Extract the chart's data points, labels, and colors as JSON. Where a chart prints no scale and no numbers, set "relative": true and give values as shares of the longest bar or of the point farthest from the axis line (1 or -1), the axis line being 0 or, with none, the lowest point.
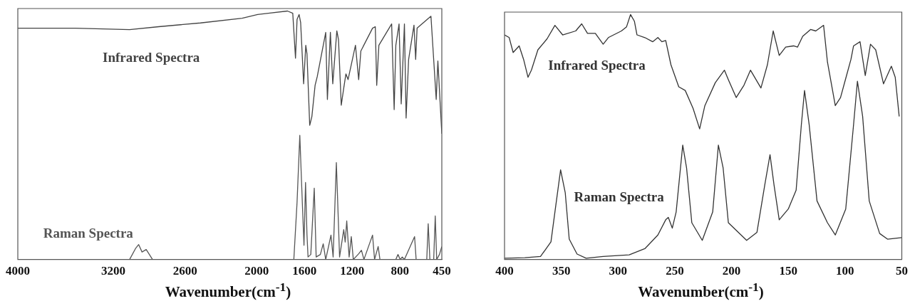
{
  "chart_data": [
    {
      "type": "line",
      "relative": true,
      "xlabel": "Wavenumber(cm$^{-1}$)",
      "xlim": [
        4000,
        450
      ],
      "xticks": [
        4000,
        3200,
        2600,
        2000,
        1600,
        1200,
        800,
        450
      ],
      "grid": false,
      "legend": false,
      "marker": "none",
      "line_style": "solid",
      "series": [
        {
          "name": "Infrared Spectra",
          "color": "#444444",
          "x": [
            4000,
            3518,
            3064,
            2820,
            2471,
            2122,
            1992,
            1903,
            1742,
            1698,
            1675,
            1662,
            1645,
            1632,
            1607,
            1589,
            1579,
            1556,
            1538,
            1511,
            1493,
            1422,
            1408,
            1383,
            1363,
            1329,
            1315,
            1292,
            1271,
            1253,
            1235,
            1173,
            1146,
            1128,
            1030,
            1007,
            995,
            977,
            870,
            849,
            835,
            808,
            790,
            763,
            749,
            728,
            683,
            669,
            657,
            541,
            497,
            483,
            450
          ],
          "values": [
            0.931,
            0.931,
            0.925,
            0.937,
            0.952,
            0.971,
            0.986,
            0.991,
            1,
            0.991,
            0.81,
            0.966,
            0.986,
            0.954,
            0.707,
            0.862,
            0.828,
            0.54,
            0.575,
            0.701,
            0.736,
            0.914,
            0.644,
            0.914,
            0.707,
            0.92,
            0.885,
            0.621,
            0.69,
            0.747,
            0.724,
            0.862,
            0.724,
            0.839,
            0.931,
            0.937,
            0.701,
            0.862,
            0.948,
            0.603,
            0.862,
            0.948,
            0.626,
            0.948,
            0.569,
            0.805,
            0.943,
            0.805,
            0.931,
            0.979,
            0.644,
            0.799,
            0.506
          ]
        },
        {
          "name": "Raman Spectra",
          "color": "#555555",
          "x": [
            3815,
            3064,
            3012,
            2988,
            2960,
            2925,
            2872,
            1689,
            1662,
            1639,
            1618,
            1604,
            1591,
            1579,
            1570,
            1547,
            1518,
            1502,
            1467,
            1443,
            1422,
            1378,
            1360,
            1333,
            1306,
            1271,
            1259,
            1246,
            1226,
            1208,
            1191,
            1146,
            1123,
            1102,
            1030,
            1013,
            983,
            968,
            835,
            817,
            799,
            781,
            763,
            678,
            665,
            576,
            564,
            550,
            518,
            505,
            493,
            470,
            450
          ],
          "values": [
            0,
            0,
            0.046,
            0.06,
            0.03,
            0.04,
            0,
            0,
            0.23,
            0.5,
            0.23,
            0.057,
            0.31,
            0.1,
            0.01,
            0.02,
            0.287,
            0.01,
            0.02,
            0.063,
            0,
            0.098,
            0.01,
            0.39,
            0.01,
            0.12,
            0.07,
            0.155,
            0.01,
            0.092,
            0,
            0.023,
            0.037,
            0,
            0.098,
            0,
            0.052,
            0,
            0,
            0.02,
            0,
            0.01,
            0,
            0.092,
            0,
            0,
            0.144,
            0,
            0,
            0.175,
            0,
            0.02,
            0.052
          ]
        }
      ]
    },
    {
      "type": "line",
      "relative": true,
      "xlabel": "Wavenumber(cm$^{-1}$)",
      "xlim": [
        400,
        50
      ],
      "xticks": [
        400,
        350,
        300,
        250,
        200,
        150,
        100,
        50
      ],
      "grid": false,
      "legend": false,
      "marker": "none",
      "line_style": "solid",
      "series": [
        {
          "name": "Infrared Spectra",
          "color": "#333333",
          "x": [
            400,
            395.9,
            392.4,
            387.1,
            383.2,
            379.3,
            376.3,
            370.6,
            362.5,
            355.6,
            348.8,
            337.3,
            332.0,
            326.9,
            320.0,
            313.1,
            308.5,
            297.0,
            292.5,
            289.0,
            285.6,
            283.3,
            276.4,
            269.5,
            264.9,
            261.4,
            258.0,
            253.4,
            246.5,
            240.8,
            233.9,
            228.1,
            223.5,
            214.3,
            206.3,
            202.8,
            195.9,
            189.0,
            183.3,
            177.6,
            174.1,
            168.4,
            163.3,
            158.0,
            152.3,
            145.4,
            141.9,
            137.3,
            130.4,
            125.8,
            118.9,
            115.5,
            108.6,
            104.0,
            99.4,
            94.8,
            92.5,
            86.8,
            82.2,
            77.6,
            73.0,
            66.1,
            59.2,
            55.8,
            52.3
          ],
          "values": [
            0.917,
            0.906,
            0.845,
            0.872,
            0.817,
            0.744,
            0.773,
            0.856,
            0.901,
            0.956,
            0.917,
            0.933,
            0.962,
            0.923,
            0.923,
            0.879,
            0.906,
            0.933,
            0.95,
            1,
            0.973,
            0.917,
            0.906,
            0.889,
            0.906,
            0.889,
            0.894,
            0.795,
            0.705,
            0.69,
            0.617,
            0.533,
            0.628,
            0.722,
            0.773,
            0.734,
            0.661,
            0.712,
            0.773,
            0.728,
            0.7,
            0.795,
            0.933,
            0.833,
            0.867,
            0.872,
            0.867,
            0.911,
            0.939,
            0.933,
            0.956,
            0.806,
            0.628,
            0.661,
            0.739,
            0.817,
            0.872,
            0.889,
            0.751,
            0.879,
            0.856,
            0.717,
            0.789,
            0.744,
            0.584
          ]
        },
        {
          "name": "Raman Spectra",
          "color": "#333333",
          "x": [
            400,
            382.1,
            368.3,
            359.1,
            355.6,
            350.6,
            346.5,
            343.0,
            336.1,
            328.1,
            313.1,
            290.2,
            276.4,
            264.9,
            258.0,
            255.7,
            252.2,
            248.8,
            243.0,
            239.6,
            235.0,
            225.8,
            216.6,
            211.6,
            207.4,
            202.8,
            186.7,
            177.6,
            170.7,
            166.1,
            162.6,
            158.0,
            150.0,
            143.1,
            138.5,
            135.7,
            131.6,
            124.7,
            115.5,
            108.6,
            99.4,
            92.5,
            89.1,
            84.5,
            78.7,
            69.5,
            62.6,
            50
          ],
          "values": [
            0.005,
            0.007,
            0.012,
            0.072,
            0.194,
            0.366,
            0.272,
            0.083,
            0.022,
            0.005,
            0.012,
            0.019,
            0.044,
            0.1,
            0.162,
            0.172,
            0.128,
            0.194,
            0.467,
            0.373,
            0.15,
            0.078,
            0.194,
            0.467,
            0.373,
            0.15,
            0.078,
            0.111,
            0.305,
            0.428,
            0.305,
            0.162,
            0.206,
            0.283,
            0.55,
            0.69,
            0.55,
            0.239,
            0.15,
            0.1,
            0.206,
            0.55,
            0.728,
            0.584,
            0.239,
            0.106,
            0.083,
            0.089
          ]
        }
      ]
    }
  ]
}
